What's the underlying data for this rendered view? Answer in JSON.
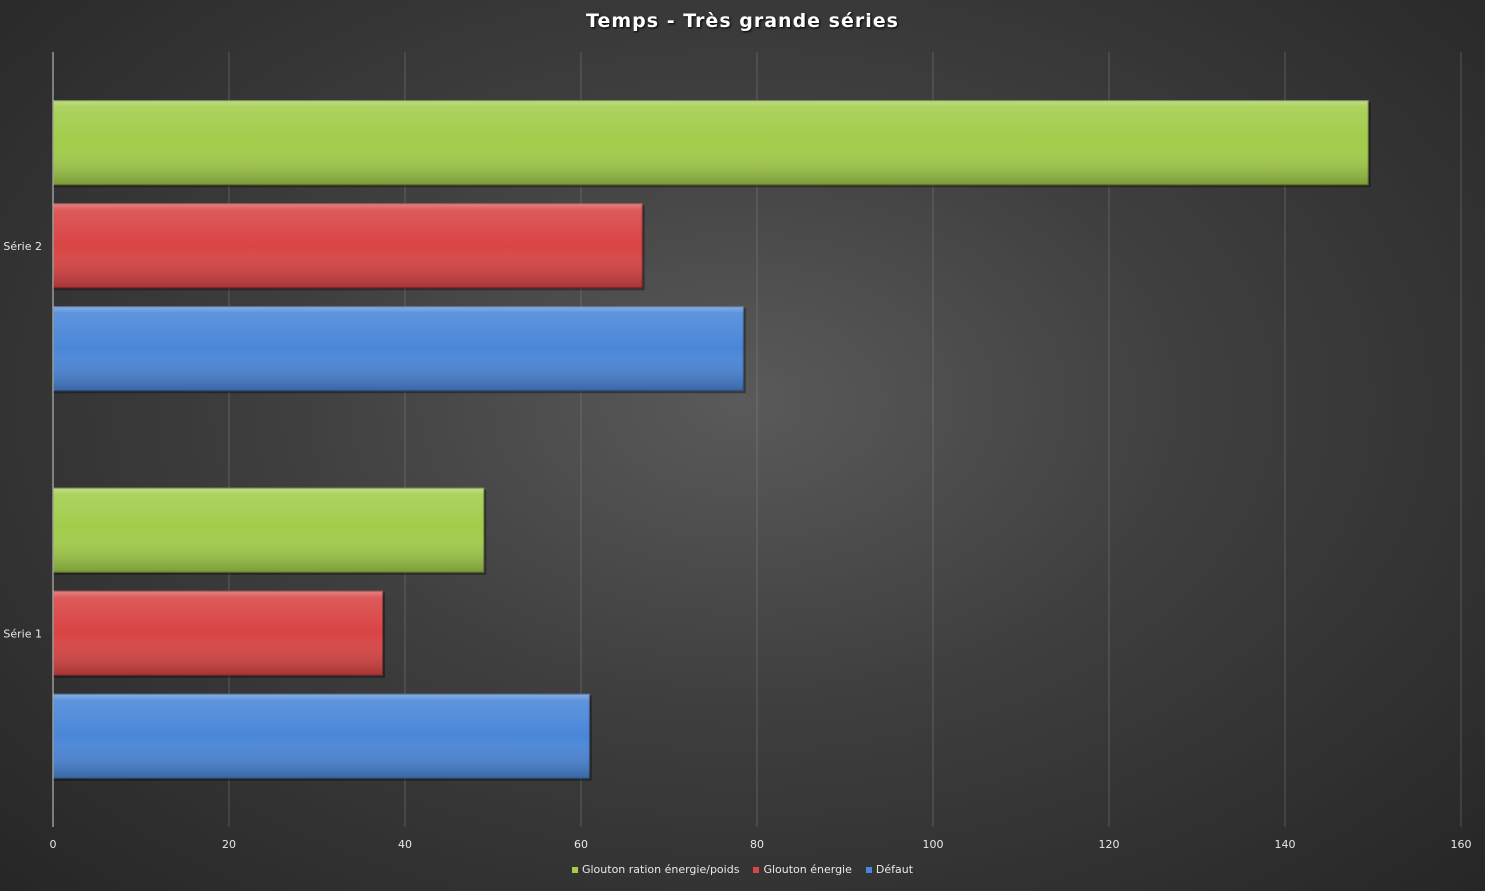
{
  "chart_data": {
    "type": "bar",
    "orientation": "horizontal",
    "title": "Temps - Très grande séries",
    "categories": [
      "Série 1",
      "Série 2"
    ],
    "series": [
      {
        "name": "Défaut",
        "color": "#4a86d8",
        "values": [
          61,
          78.5
        ]
      },
      {
        "name": "Glouton énergie",
        "color": "#d94444",
        "values": [
          37.5,
          67
        ]
      },
      {
        "name": "Glouton ration énergie/poids",
        "color": "#a2cc4a",
        "values": [
          49,
          149.5
        ]
      }
    ],
    "xlim": [
      0,
      160
    ],
    "xticks": [
      "0",
      "20",
      "40",
      "60",
      "80",
      "100",
      "120",
      "140",
      "160"
    ],
    "grid": true,
    "legend_position": "bottom"
  }
}
